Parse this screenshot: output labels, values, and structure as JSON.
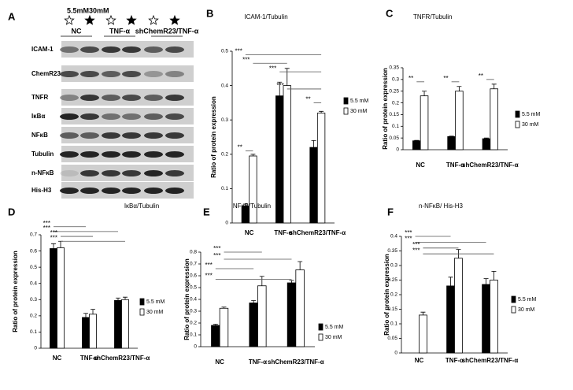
{
  "blot": {
    "panel": "A",
    "conditions": "5.5mM30mM",
    "groups": [
      "NC",
      "TNF-α",
      "shChemR23/TNF-α"
    ],
    "rows": [
      "ICAM-1",
      "ChemR23",
      "TNFR",
      "IκBα",
      "NFκB",
      "Tubulin",
      "n-NFκB",
      "His-H3"
    ]
  },
  "chart_data": [
    {
      "type": "bar",
      "panel": "B",
      "title": "ICAM-1/Tubulin",
      "y_label": "Ratio of protein expression",
      "categories": [
        "NC",
        "TNF-α",
        "shChemR23/TNF-α"
      ],
      "series": [
        {
          "name": "5.5 mM",
          "color": "#000000",
          "values": [
            0.05,
            0.37,
            0.22
          ],
          "errors": [
            0.005,
            0.04,
            0.02
          ]
        },
        {
          "name": "30 mM",
          "color": "#ffffff",
          "values": [
            0.195,
            0.4,
            0.32
          ],
          "errors": [
            0.005,
            0.05,
            0.005
          ]
        }
      ],
      "ylim": [
        0,
        0.5
      ],
      "yticks": [
        0,
        0.1,
        0.2,
        0.3,
        0.4,
        0.5
      ],
      "annotations": [
        "**",
        "***",
        "***",
        "***",
        "***",
        "**"
      ]
    },
    {
      "type": "bar",
      "panel": "C",
      "title": "TNFR/Tubulin",
      "y_label": "Ratio of protein expression",
      "categories": [
        "NC",
        "TNF-α",
        "shChemR23/TNF-α"
      ],
      "series": [
        {
          "name": "5.5 mM",
          "color": "#000000",
          "values": [
            0.038,
            0.056,
            0.047
          ],
          "errors": [
            0.002,
            0.002,
            0.003
          ]
        },
        {
          "name": "30 mM",
          "color": "#ffffff",
          "values": [
            0.23,
            0.25,
            0.26
          ],
          "errors": [
            0.02,
            0.02,
            0.02
          ]
        }
      ],
      "ylim": [
        0,
        0.35
      ],
      "yticks": [
        0,
        0.05,
        0.1,
        0.15,
        0.2,
        0.25,
        0.3,
        0.35
      ],
      "annotations": [
        "**",
        "**",
        "**"
      ]
    },
    {
      "type": "bar",
      "panel": "D",
      "title": "IκBα/Tubulin",
      "y_label": "Ratio of protein expression",
      "categories": [
        "NC",
        "TNF-α",
        "shChemR23/TNF-α"
      ],
      "series": [
        {
          "name": "5.5 mM",
          "color": "#000000",
          "values": [
            0.615,
            0.19,
            0.295
          ],
          "errors": [
            0.03,
            0.025,
            0.015
          ]
        },
        {
          "name": "30 mM",
          "color": "#ffffff",
          "values": [
            0.62,
            0.21,
            0.3
          ],
          "errors": [
            0.04,
            0.03,
            0.015
          ]
        }
      ],
      "ylim": [
        0,
        0.7
      ],
      "yticks": [
        0,
        0.1,
        0.2,
        0.3,
        0.4,
        0.5,
        0.6,
        0.7
      ],
      "annotations": [
        "***",
        "***",
        "***",
        "***"
      ]
    },
    {
      "type": "bar",
      "panel": "E",
      "title": "NFκB/Tubulin",
      "y_label": "Ratio of protein expression",
      "categories": [
        "NC",
        "TNF-α",
        "shChemR23/TNF-α"
      ],
      "series": [
        {
          "name": "5.5 mM",
          "color": "#000000",
          "values": [
            0.18,
            0.37,
            0.54
          ],
          "errors": [
            0.01,
            0.02,
            0.02
          ]
        },
        {
          "name": "30 mM",
          "color": "#ffffff",
          "values": [
            0.325,
            0.515,
            0.65
          ],
          "errors": [
            0.01,
            0.08,
            0.07
          ]
        }
      ],
      "ylim": [
        0,
        0.8
      ],
      "yticks": [
        0,
        0.1,
        0.2,
        0.3,
        0.4,
        0.5,
        0.6,
        0.7,
        0.8
      ],
      "annotations": [
        "***",
        "***",
        "***",
        "***"
      ]
    },
    {
      "type": "bar",
      "panel": "F",
      "title": "n-NFκB/ His-H3",
      "y_label": "Ratio of protein expression",
      "categories": [
        "NC",
        "TNF-α",
        "shChemR23/TNF-α"
      ],
      "series": [
        {
          "name": "5.5 mM",
          "color": "#000000",
          "values": [
            null,
            0.23,
            0.235
          ],
          "errors": [
            null,
            0.03,
            0.02
          ]
        },
        {
          "name": "30 mM",
          "color": "#ffffff",
          "values": [
            0.13,
            0.325,
            0.25
          ],
          "errors": [
            0.01,
            0.03,
            0.03
          ]
        }
      ],
      "ylim": [
        0,
        0.4
      ],
      "yticks": [
        0,
        0.05,
        0.1,
        0.15,
        0.2,
        0.25,
        0.3,
        0.35,
        0.4
      ],
      "annotations": [
        "***",
        "***",
        "***",
        "***"
      ]
    }
  ]
}
